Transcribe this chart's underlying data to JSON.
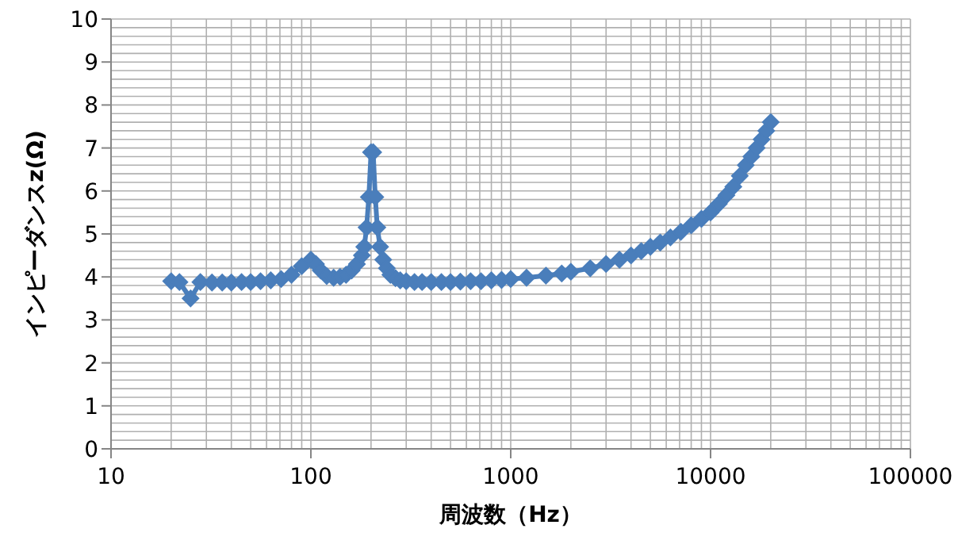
{
  "chart_data": {
    "type": "line",
    "xlabel": "周波数（Hz）",
    "ylabel": "インピーダンスz(Ω)",
    "x": [
      20,
      22,
      25,
      28,
      32,
      36,
      40,
      45,
      50,
      56,
      63,
      71,
      80,
      90,
      100,
      106,
      112,
      120,
      130,
      140,
      150,
      160,
      170,
      180,
      185,
      190,
      195,
      200,
      205,
      210,
      215,
      222,
      230,
      240,
      250,
      265,
      280,
      300,
      330,
      360,
      400,
      450,
      500,
      560,
      630,
      710,
      800,
      900,
      1000,
      1200,
      1500,
      1800,
      2000,
      2500,
      3000,
      3500,
      4000,
      4500,
      5000,
      5600,
      6300,
      7100,
      8000,
      9000,
      10000,
      11000,
      12000,
      13000,
      14000,
      15000,
      16000,
      17000,
      18000,
      19000,
      20000
    ],
    "series": [
      {
        "color": "#4a7ebb",
        "values": [
          3.9,
          3.88,
          3.5,
          3.88,
          3.87,
          3.87,
          3.87,
          3.88,
          3.88,
          3.9,
          3.92,
          3.95,
          4.05,
          4.25,
          4.4,
          4.3,
          4.15,
          4.02,
          3.98,
          4.0,
          4.05,
          4.15,
          4.3,
          4.5,
          4.7,
          5.15,
          5.86,
          6.9,
          6.9,
          5.86,
          5.15,
          4.7,
          4.4,
          4.2,
          4.05,
          3.97,
          3.92,
          3.9,
          3.88,
          3.88,
          3.88,
          3.88,
          3.88,
          3.89,
          3.9,
          3.9,
          3.92,
          3.93,
          3.95,
          3.98,
          4.03,
          4.08,
          4.12,
          4.2,
          4.3,
          4.4,
          4.5,
          4.6,
          4.7,
          4.8,
          4.92,
          5.05,
          5.2,
          5.35,
          5.5,
          5.7,
          5.9,
          6.1,
          6.35,
          6.6,
          6.8,
          7.0,
          7.2,
          7.4,
          7.6
        ]
      }
    ],
    "xlim": [
      10,
      100000
    ],
    "xticks": [
      10,
      100,
      1000,
      10000,
      100000
    ],
    "log": "x",
    "ylim": [
      0,
      10
    ],
    "yticks": [
      0,
      1,
      2,
      3,
      4,
      5,
      6,
      7,
      8,
      9,
      10
    ],
    "grid": true,
    "marker": "diamond",
    "line_style": "solid"
  }
}
